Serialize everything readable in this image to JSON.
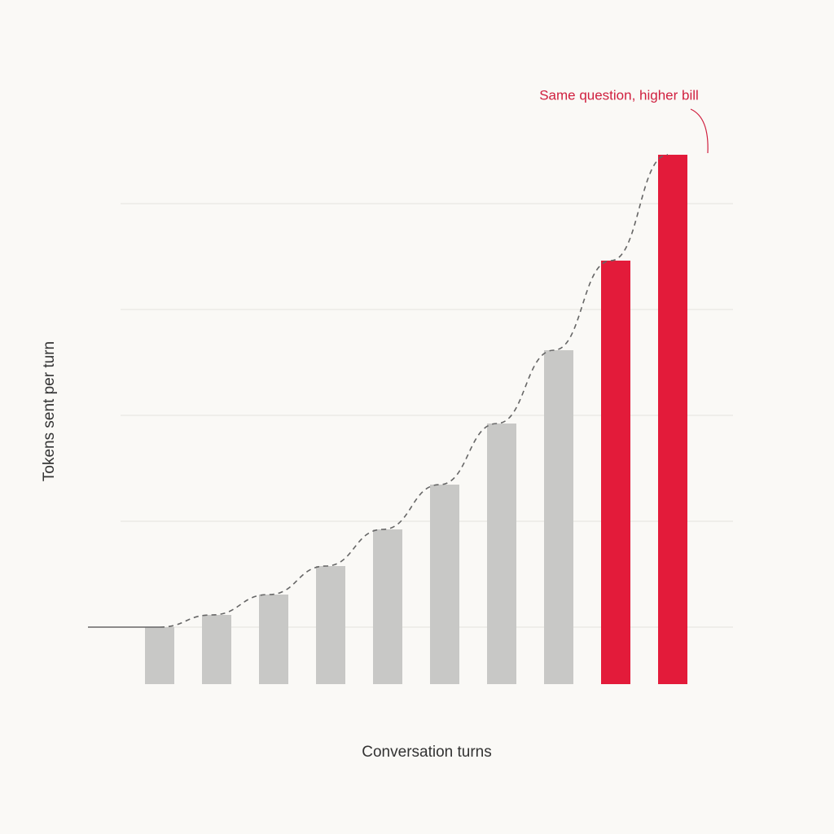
{
  "chart_data": {
    "type": "bar",
    "x_label": "Conversation turns",
    "y_label": "Tokens sent per turn",
    "annotation": "Same question, higher bill",
    "categories": [
      null,
      null,
      null,
      null,
      null,
      null,
      null,
      null,
      null,
      null
    ],
    "values": [
      7,
      8.5,
      11,
      14.5,
      19,
      24.5,
      32,
      41,
      52,
      65
    ],
    "colors": [
      "#c8c8c6",
      "#c8c8c6",
      "#c8c8c6",
      "#c8c8c6",
      "#c8c8c6",
      "#c8c8c6",
      "#c8c8c6",
      "#c8c8c6",
      "#e31b3a",
      "#e31b3a"
    ],
    "trend_line": true,
    "ylim": [
      0,
      74
    ],
    "yticks": [
      7,
      20,
      33,
      46,
      59
    ],
    "grid": true
  }
}
